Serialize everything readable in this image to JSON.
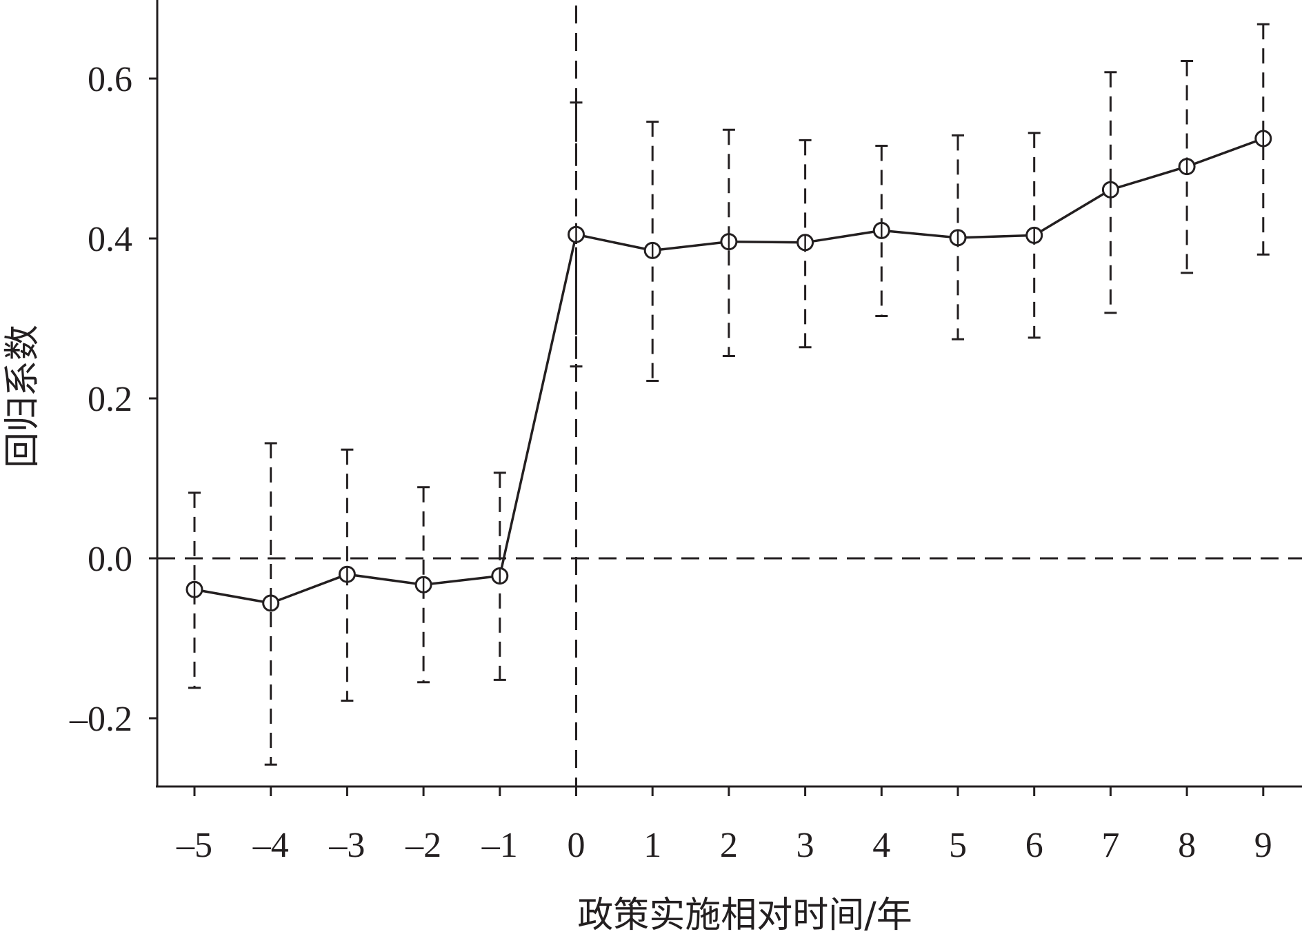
{
  "chart_data": {
    "type": "line",
    "xlabel": "政策实施相对时间/年",
    "ylabel": "回归系数",
    "x": [
      -5,
      -4,
      -3,
      -2,
      -1,
      0,
      1,
      2,
      3,
      4,
      5,
      6,
      7,
      8,
      9
    ],
    "x_tick_labels": [
      "–5",
      "–4",
      "–3",
      "–2",
      "–1",
      "0",
      "1",
      "2",
      "3",
      "4",
      "5",
      "6",
      "7",
      "8",
      "9"
    ],
    "y_ticks": [
      -0.2,
      0.0,
      0.2,
      0.4,
      0.6
    ],
    "y_tick_labels": [
      "–0.2",
      "0.0",
      "0.2",
      "0.4",
      "0.6"
    ],
    "series": [
      {
        "values": [
          -0.039,
          -0.056,
          -0.02,
          -0.033,
          -0.022,
          0.405,
          0.385,
          0.396,
          0.395,
          0.41,
          0.401,
          0.404,
          0.461,
          0.49,
          0.525
        ],
        "ci_lower": [
          -0.162,
          -0.258,
          -0.178,
          -0.155,
          -0.152,
          0.24,
          0.222,
          0.253,
          0.264,
          0.303,
          0.274,
          0.276,
          0.307,
          0.357,
          0.38
        ],
        "ci_upper": [
          0.082,
          0.144,
          0.136,
          0.089,
          0.107,
          0.57,
          0.546,
          0.536,
          0.523,
          0.516,
          0.529,
          0.532,
          0.608,
          0.622,
          0.668
        ]
      }
    ],
    "reference_lines": {
      "horizontal": 0.0,
      "vertical": 0
    },
    "xlim": [
      -5.5,
      9.5
    ],
    "ylim": [
      -0.29,
      0.7
    ],
    "grid": false,
    "legend": "none"
  }
}
